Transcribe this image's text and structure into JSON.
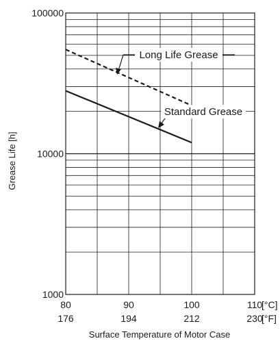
{
  "chart_data": {
    "type": "line",
    "xlabel": "Surface Temperature of Motor Case",
    "ylabel": "Grease Life [h]",
    "yscale": "log",
    "xlim": [
      80,
      110
    ],
    "ylim": [
      1000,
      100000
    ],
    "grid": true,
    "x_ticks_c": [
      "80",
      "90",
      "100",
      "110"
    ],
    "x_ticks_f": [
      "176",
      "194",
      "212",
      "230"
    ],
    "x_unit_c": "[°C]",
    "x_unit_f": "[°F]",
    "y_ticks": [
      "1000",
      "10000",
      "100000"
    ],
    "series": [
      {
        "name": "Long Life Grease",
        "style": "dashed",
        "color": "#1a1a1a",
        "x": [
          80,
          100
        ],
        "y": [
          55000,
          22000
        ]
      },
      {
        "name": "Standard Grease",
        "style": "solid",
        "color": "#1a1a1a",
        "x": [
          80,
          100
        ],
        "y": [
          28000,
          12000
        ]
      }
    ]
  }
}
